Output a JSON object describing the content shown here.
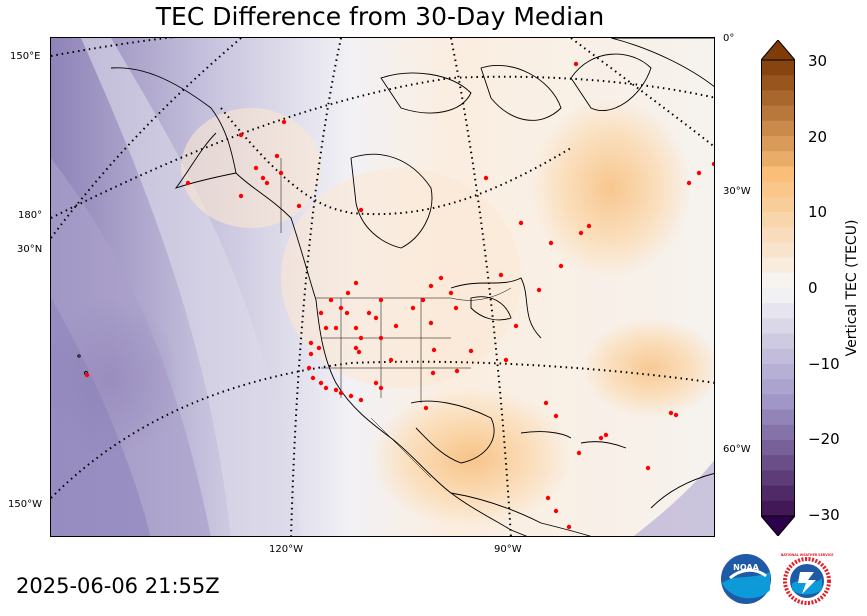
{
  "title": "TEC Difference from 30-Day Median",
  "timestamp": "2025-06-06 21:55Z",
  "map": {
    "graticule_labels_left": [
      "150°E",
      "180°",
      "30°N",
      "150°W"
    ],
    "graticule_labels_right": [
      "0°",
      "30°W",
      "60°W"
    ],
    "graticule_labels_bottom": [
      "120°W",
      "90°W"
    ]
  },
  "colorbar": {
    "label": "Vertical TEC (TECU)",
    "min": -30,
    "max": 30,
    "ticks": [
      "30",
      "20",
      "10",
      "0",
      "−10",
      "−20",
      "−30"
    ],
    "low_color": "#3b0f4f",
    "mid_color": "#f7f7f7",
    "high_color": "#7f3b08"
  },
  "logos": {
    "noaa_text": "NOAA",
    "nws_text": "NATIONAL WEATHER SERVICE"
  }
}
